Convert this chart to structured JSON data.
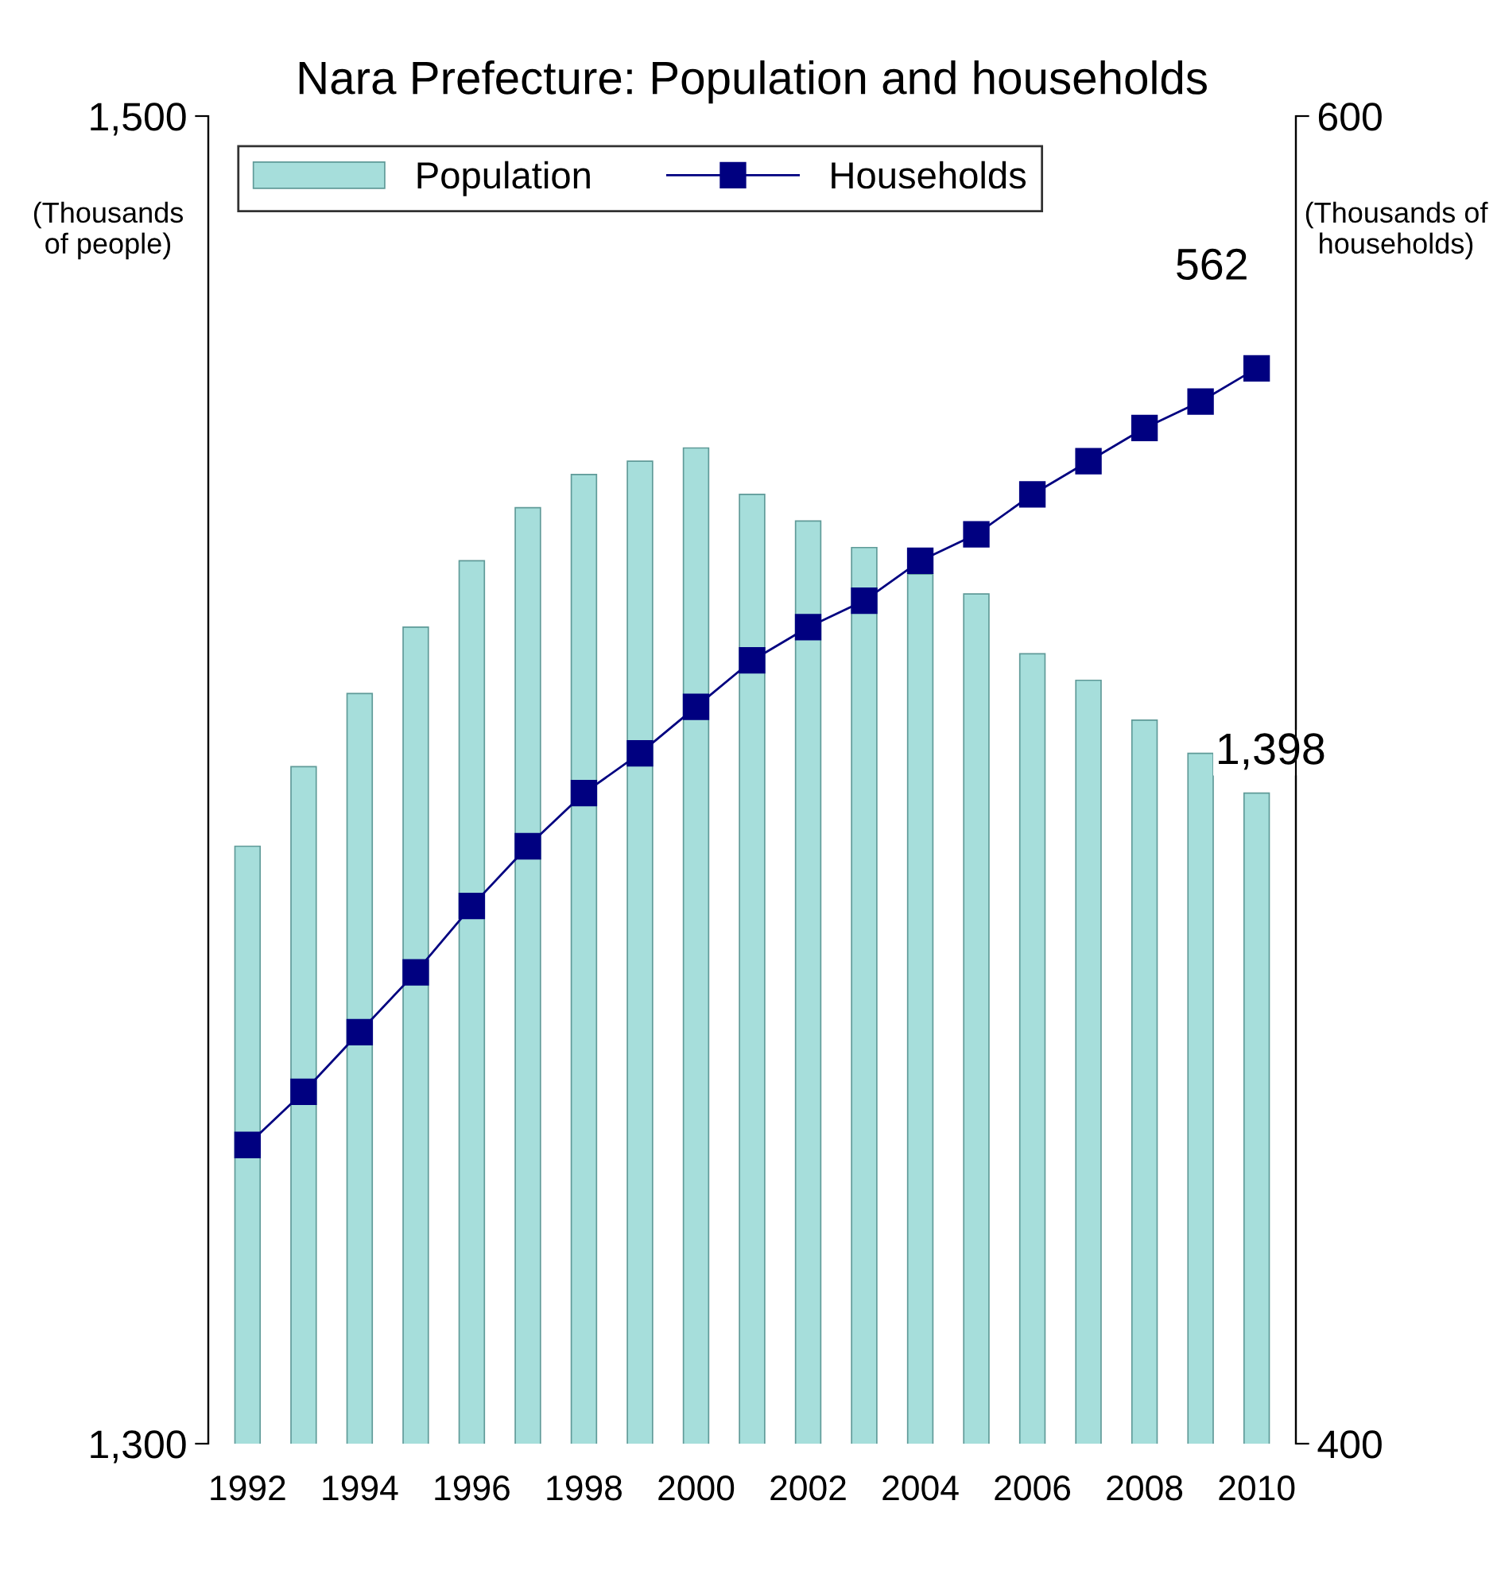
{
  "chart_data": {
    "type": "bar",
    "title": "Nara Prefecture: Population and households",
    "ylabel": "(Thousands\nof people)",
    "y2label": "(Thousands of\nhouseholds)",
    "categories": [
      "1992",
      null,
      "1994",
      null,
      "1996",
      null,
      "1998",
      null,
      "2000",
      null,
      "2002",
      null,
      "2004",
      null,
      "2006",
      null,
      "2008",
      null,
      "2010"
    ],
    "series": [
      {
        "name": "Population",
        "color": "#a6dedb",
        "values": [
          1390,
          1402,
          1413,
          1423,
          1433,
          1441,
          1446,
          1448,
          1450,
          1443,
          1439,
          1435,
          1431,
          1428,
          1419,
          1415,
          1409,
          1404,
          1398
        ],
        "value_labels": [
          null,
          null,
          null,
          null,
          null,
          null,
          null,
          null,
          null,
          null,
          null,
          null,
          null,
          null,
          null,
          null,
          null,
          null,
          "1,398"
        ]
      },
      {
        "name": "Households",
        "type": "line",
        "axis": "y2",
        "color": "#000080",
        "marker": "square",
        "line_style": "solid",
        "values": [
          445,
          453,
          462,
          471,
          481,
          490,
          498,
          504,
          511,
          518,
          523,
          527,
          533,
          537,
          543,
          548,
          553,
          557,
          562
        ],
        "value_labels": [
          null,
          null,
          null,
          null,
          null,
          null,
          null,
          null,
          null,
          null,
          null,
          null,
          null,
          null,
          null,
          null,
          null,
          null,
          "562"
        ]
      }
    ],
    "ylim": [
      1300,
      1500
    ],
    "yticks": [
      {
        "value": 1300,
        "label": "1,300"
      },
      {
        "value": 1500,
        "label": "1,500"
      }
    ],
    "y2lim": [
      400,
      600
    ],
    "y2ticks": [
      400,
      600
    ],
    "grid": false,
    "legend": "top left"
  }
}
